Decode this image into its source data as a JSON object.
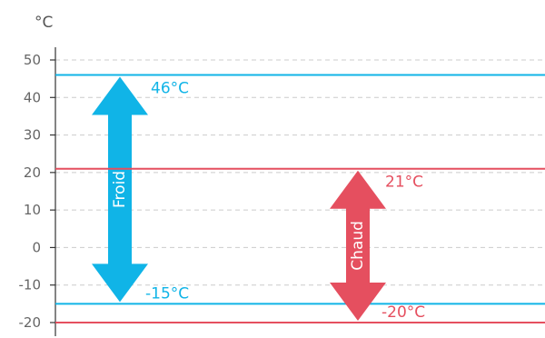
{
  "chart_data": {
    "type": "range",
    "unit_label": "°C",
    "ylim": [
      -22,
      55
    ],
    "yticks": [
      50,
      40,
      30,
      20,
      10,
      0,
      -10,
      -20
    ],
    "tick_labels": [
      "50",
      "40",
      "30",
      "20",
      "10",
      "0",
      "-10",
      "-20"
    ],
    "grid": true,
    "ranges": [
      {
        "name": "Froid",
        "max": 46,
        "min": -15,
        "max_label": "46°C",
        "min_label": "-15°C",
        "color": "#10b4e7"
      },
      {
        "name": "Chaud",
        "max": 21,
        "min": -20,
        "max_label": "21°C",
        "min_label": "-20°C",
        "color": "#e54f5f"
      }
    ]
  }
}
